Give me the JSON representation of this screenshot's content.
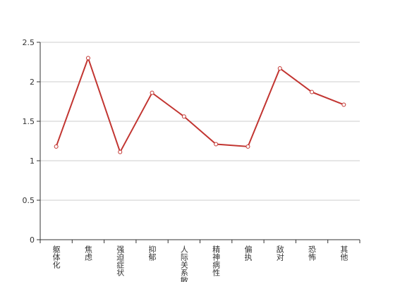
{
  "chart_data": {
    "type": "line",
    "categories": [
      "躯体化",
      "焦虑",
      "强迫症状",
      "抑郁",
      "人际关系敏感",
      "精神病性",
      "偏执",
      "敌对",
      "恐怖",
      "其他"
    ],
    "values": [
      1.18,
      2.3,
      1.11,
      1.86,
      1.56,
      1.21,
      1.18,
      2.17,
      1.87,
      1.71
    ],
    "color": "#c23531",
    "ylim": [
      0,
      2.5
    ],
    "yticks": [
      0,
      0.5,
      1,
      1.5,
      2,
      2.5
    ],
    "grid": true
  }
}
